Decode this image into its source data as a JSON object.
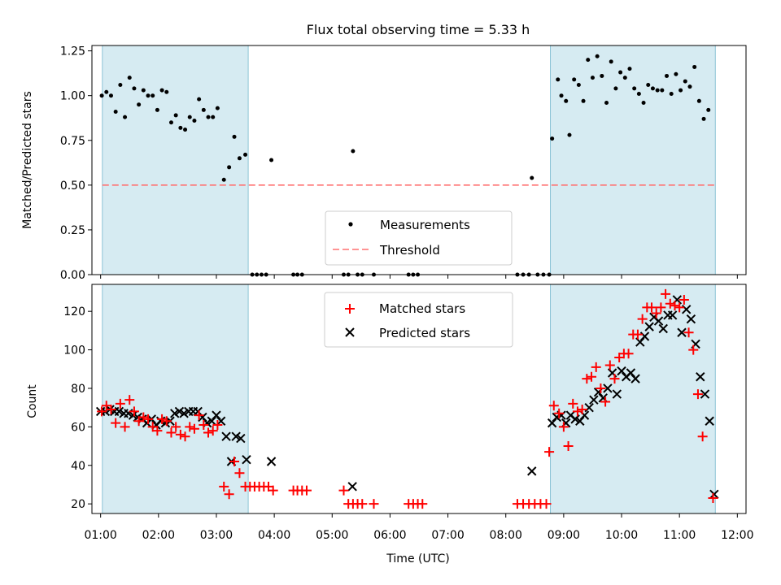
{
  "chart_data": [
    {
      "type": "scatter",
      "title": "Flux total observing time = 5.33 h",
      "xlabel": "",
      "ylabel": "Matched/Predicted stars",
      "xlim": [
        0.85,
        12.15
      ],
      "ylim": [
        0,
        1.28
      ],
      "yticks": [
        0,
        0.25,
        0.5,
        0.75,
        1.0,
        1.25
      ],
      "ytick_labels": [
        "0.00",
        "0.25",
        "0.50",
        "0.75",
        "1.00",
        "1.25"
      ],
      "shaded_ranges": [
        [
          1.03,
          3.55
        ],
        [
          8.77,
          11.62
        ]
      ],
      "threshold": 0.5,
      "legend": [
        "Measurements",
        "Threshold"
      ],
      "legend_position": "lower-center",
      "measurements": [
        [
          1.02,
          1.0
        ],
        [
          1.1,
          1.02
        ],
        [
          1.18,
          1.0
        ],
        [
          1.26,
          0.91
        ],
        [
          1.34,
          1.06
        ],
        [
          1.42,
          0.88
        ],
        [
          1.5,
          1.1
        ],
        [
          1.58,
          1.04
        ],
        [
          1.66,
          0.95
        ],
        [
          1.74,
          1.03
        ],
        [
          1.82,
          1.0
        ],
        [
          1.9,
          1.0
        ],
        [
          1.98,
          0.92
        ],
        [
          2.06,
          1.03
        ],
        [
          2.14,
          1.02
        ],
        [
          2.22,
          0.85
        ],
        [
          2.3,
          0.89
        ],
        [
          2.38,
          0.82
        ],
        [
          2.46,
          0.81
        ],
        [
          2.54,
          0.88
        ],
        [
          2.62,
          0.86
        ],
        [
          2.7,
          0.98
        ],
        [
          2.78,
          0.92
        ],
        [
          2.86,
          0.88
        ],
        [
          2.94,
          0.88
        ],
        [
          3.02,
          0.93
        ],
        [
          3.13,
          0.53
        ],
        [
          3.22,
          0.6
        ],
        [
          3.31,
          0.77
        ],
        [
          3.4,
          0.65
        ],
        [
          3.5,
          0.67
        ],
        [
          3.62,
          0.0
        ],
        [
          3.7,
          0.0
        ],
        [
          3.78,
          0.0
        ],
        [
          3.86,
          0.0
        ],
        [
          3.95,
          0.64
        ],
        [
          4.33,
          0.0
        ],
        [
          4.4,
          0.0
        ],
        [
          4.48,
          0.0
        ],
        [
          5.2,
          0.0
        ],
        [
          5.28,
          0.0
        ],
        [
          5.36,
          0.69
        ],
        [
          5.44,
          0.0
        ],
        [
          5.52,
          0.0
        ],
        [
          5.72,
          0.0
        ],
        [
          6.32,
          0.0
        ],
        [
          6.4,
          0.0
        ],
        [
          6.48,
          0.0
        ],
        [
          8.2,
          0.0
        ],
        [
          8.3,
          0.0
        ],
        [
          8.4,
          0.0
        ],
        [
          8.45,
          0.54
        ],
        [
          8.55,
          0.0
        ],
        [
          8.65,
          0.0
        ],
        [
          8.75,
          0.0
        ],
        [
          8.8,
          0.76
        ],
        [
          8.9,
          1.09
        ],
        [
          8.96,
          1.0
        ],
        [
          9.04,
          0.97
        ],
        [
          9.1,
          0.78
        ],
        [
          9.18,
          1.09
        ],
        [
          9.26,
          1.06
        ],
        [
          9.34,
          0.97
        ],
        [
          9.42,
          1.2
        ],
        [
          9.5,
          1.1
        ],
        [
          9.58,
          1.22
        ],
        [
          9.66,
          1.11
        ],
        [
          9.74,
          0.96
        ],
        [
          9.82,
          1.19
        ],
        [
          9.9,
          1.04
        ],
        [
          9.98,
          1.13
        ],
        [
          10.06,
          1.1
        ],
        [
          10.14,
          1.15
        ],
        [
          10.22,
          1.04
        ],
        [
          10.3,
          1.01
        ],
        [
          10.38,
          0.96
        ],
        [
          10.46,
          1.06
        ],
        [
          10.54,
          1.04
        ],
        [
          10.62,
          1.03
        ],
        [
          10.7,
          1.03
        ],
        [
          10.78,
          1.11
        ],
        [
          10.86,
          1.01
        ],
        [
          10.94,
          1.12
        ],
        [
          11.02,
          1.03
        ],
        [
          11.1,
          1.08
        ],
        [
          11.18,
          1.05
        ],
        [
          11.26,
          1.16
        ],
        [
          11.34,
          0.97
        ],
        [
          11.42,
          0.87
        ],
        [
          11.5,
          0.92
        ]
      ]
    },
    {
      "type": "scatter",
      "xlabel": "Time (UTC)",
      "ylabel": "Count",
      "xlim": [
        0.85,
        12.15
      ],
      "ylim": [
        15,
        134
      ],
      "xticks": [
        1,
        2,
        3,
        4,
        5,
        6,
        7,
        8,
        9,
        10,
        11,
        12
      ],
      "xtick_labels": [
        "01:00",
        "02:00",
        "03:00",
        "04:00",
        "05:00",
        "06:00",
        "07:00",
        "08:00",
        "09:00",
        "10:00",
        "11:00",
        "12:00"
      ],
      "yticks": [
        20,
        40,
        60,
        80,
        100,
        120
      ],
      "ytick_labels": [
        "20",
        "40",
        "60",
        "80",
        "100",
        "120"
      ],
      "shaded_ranges": [
        [
          1.03,
          3.55
        ],
        [
          8.77,
          11.62
        ]
      ],
      "legend": [
        "Matched stars",
        "Predicted stars"
      ],
      "legend_position": "upper-center",
      "matched": [
        [
          1.02,
          68
        ],
        [
          1.1,
          71
        ],
        [
          1.18,
          69
        ],
        [
          1.26,
          62
        ],
        [
          1.34,
          72
        ],
        [
          1.42,
          60
        ],
        [
          1.5,
          74
        ],
        [
          1.58,
          68
        ],
        [
          1.66,
          63
        ],
        [
          1.74,
          65
        ],
        [
          1.82,
          64
        ],
        [
          1.9,
          60
        ],
        [
          1.98,
          58
        ],
        [
          2.06,
          64
        ],
        [
          2.14,
          63
        ],
        [
          2.22,
          57
        ],
        [
          2.3,
          60
        ],
        [
          2.38,
          56
        ],
        [
          2.46,
          55
        ],
        [
          2.54,
          60
        ],
        [
          2.62,
          59
        ],
        [
          2.7,
          66
        ],
        [
          2.78,
          61
        ],
        [
          2.86,
          57
        ],
        [
          2.94,
          58
        ],
        [
          3.02,
          61
        ],
        [
          3.13,
          29
        ],
        [
          3.22,
          25
        ],
        [
          3.31,
          42
        ],
        [
          3.4,
          36
        ],
        [
          3.5,
          29
        ],
        [
          3.58,
          29
        ],
        [
          3.66,
          29
        ],
        [
          3.74,
          29
        ],
        [
          3.82,
          29
        ],
        [
          3.9,
          29
        ],
        [
          3.98,
          27
        ],
        [
          4.33,
          27
        ],
        [
          4.4,
          27
        ],
        [
          4.48,
          27
        ],
        [
          4.56,
          27
        ],
        [
          5.2,
          27
        ],
        [
          5.28,
          20
        ],
        [
          5.36,
          20
        ],
        [
          5.44,
          20
        ],
        [
          5.52,
          20
        ],
        [
          5.72,
          20
        ],
        [
          6.32,
          20
        ],
        [
          6.4,
          20
        ],
        [
          6.48,
          20
        ],
        [
          6.56,
          20
        ],
        [
          8.2,
          20
        ],
        [
          8.3,
          20
        ],
        [
          8.4,
          20
        ],
        [
          8.5,
          20
        ],
        [
          8.6,
          20
        ],
        [
          8.7,
          20
        ],
        [
          8.75,
          47
        ],
        [
          8.83,
          71
        ],
        [
          8.92,
          67
        ],
        [
          9.0,
          60
        ],
        [
          9.08,
          50
        ],
        [
          9.16,
          72
        ],
        [
          9.24,
          68
        ],
        [
          9.32,
          69
        ],
        [
          9.4,
          85
        ],
        [
          9.48,
          86
        ],
        [
          9.56,
          91
        ],
        [
          9.64,
          80
        ],
        [
          9.72,
          73
        ],
        [
          9.8,
          92
        ],
        [
          9.88,
          85
        ],
        [
          9.96,
          96
        ],
        [
          10.04,
          98
        ],
        [
          10.12,
          98
        ],
        [
          10.2,
          108
        ],
        [
          10.28,
          108
        ],
        [
          10.36,
          116
        ],
        [
          10.44,
          122
        ],
        [
          10.52,
          122
        ],
        [
          10.6,
          119
        ],
        [
          10.68,
          122
        ],
        [
          10.76,
          129
        ],
        [
          10.84,
          124
        ],
        [
          10.92,
          123
        ],
        [
          11.0,
          122
        ],
        [
          11.08,
          126
        ],
        [
          11.16,
          109
        ],
        [
          11.24,
          100
        ],
        [
          11.32,
          77
        ],
        [
          11.4,
          55
        ],
        [
          11.58,
          23
        ]
      ],
      "predicted": [
        [
          1.0,
          68
        ],
        [
          1.08,
          68
        ],
        [
          1.16,
          69
        ],
        [
          1.24,
          68
        ],
        [
          1.32,
          68
        ],
        [
          1.4,
          67
        ],
        [
          1.48,
          67
        ],
        [
          1.56,
          66
        ],
        [
          1.64,
          65
        ],
        [
          1.72,
          64
        ],
        [
          1.8,
          62
        ],
        [
          1.88,
          64
        ],
        [
          1.96,
          61
        ],
        [
          2.04,
          63
        ],
        [
          2.12,
          62
        ],
        [
          2.2,
          63
        ],
        [
          2.28,
          67
        ],
        [
          2.36,
          68
        ],
        [
          2.44,
          67
        ],
        [
          2.52,
          68
        ],
        [
          2.6,
          68
        ],
        [
          2.68,
          68
        ],
        [
          2.76,
          65
        ],
        [
          2.84,
          62
        ],
        [
          2.92,
          63
        ],
        [
          3.0,
          66
        ],
        [
          3.08,
          63
        ],
        [
          3.17,
          55
        ],
        [
          3.26,
          42
        ],
        [
          3.34,
          55
        ],
        [
          3.42,
          54
        ],
        [
          3.52,
          43
        ],
        [
          3.95,
          42
        ],
        [
          5.35,
          29
        ],
        [
          8.45,
          37
        ],
        [
          8.8,
          62
        ],
        [
          8.88,
          65
        ],
        [
          8.96,
          66
        ],
        [
          9.04,
          62
        ],
        [
          9.12,
          66
        ],
        [
          9.2,
          64
        ],
        [
          9.28,
          63
        ],
        [
          9.36,
          66
        ],
        [
          9.44,
          70
        ],
        [
          9.52,
          74
        ],
        [
          9.6,
          78
        ],
        [
          9.68,
          75
        ],
        [
          9.76,
          80
        ],
        [
          9.84,
          88
        ],
        [
          9.92,
          77
        ],
        [
          10.0,
          89
        ],
        [
          10.08,
          86
        ],
        [
          10.16,
          88
        ],
        [
          10.24,
          85
        ],
        [
          10.32,
          104
        ],
        [
          10.4,
          107
        ],
        [
          10.48,
          112
        ],
        [
          10.56,
          117
        ],
        [
          10.64,
          115
        ],
        [
          10.72,
          111
        ],
        [
          10.8,
          118
        ],
        [
          10.88,
          118
        ],
        [
          10.96,
          126
        ],
        [
          11.04,
          109
        ],
        [
          11.12,
          121
        ],
        [
          11.2,
          116
        ],
        [
          11.28,
          103
        ],
        [
          11.36,
          86
        ],
        [
          11.44,
          77
        ],
        [
          11.52,
          63
        ],
        [
          11.6,
          25
        ]
      ]
    }
  ]
}
